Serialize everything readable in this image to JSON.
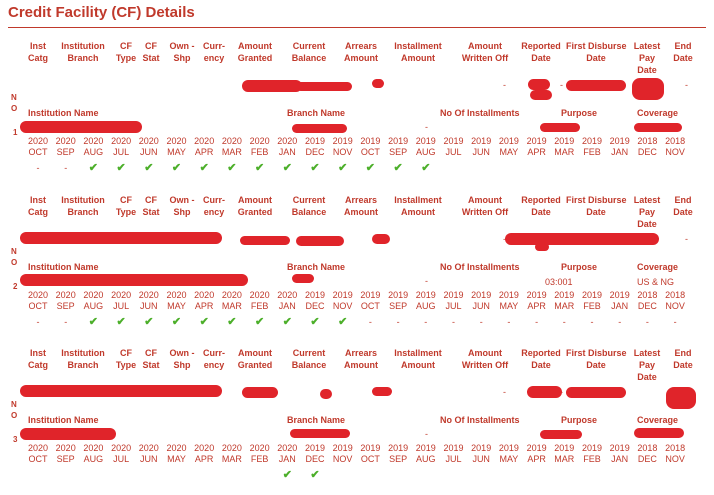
{
  "title": "Credit Facility (CF) Details",
  "columns": [
    {
      "l1": "Inst",
      "l2": "Catg",
      "l3": ""
    },
    {
      "l1": "Institution",
      "l2": "Branch",
      "l3": ""
    },
    {
      "l1": "CF",
      "l2": "Type",
      "l3": ""
    },
    {
      "l1": "CF",
      "l2": "Stat",
      "l3": ""
    },
    {
      "l1": "Own -",
      "l2": "Shp",
      "l3": ""
    },
    {
      "l1": "Curr-",
      "l2": "ency",
      "l3": ""
    },
    {
      "l1": "Amount",
      "l2": "Granted",
      "l3": ""
    },
    {
      "l1": "Current",
      "l2": "Balance",
      "l3": ""
    },
    {
      "l1": "Arrears",
      "l2": "Amount",
      "l3": ""
    },
    {
      "l1": "Installment",
      "l2": "Amount",
      "l3": ""
    },
    {
      "l1": "Amount",
      "l2": "Written Off",
      "l3": ""
    },
    {
      "l1": "Reported",
      "l2": "Date",
      "l3": ""
    },
    {
      "l1": "First Disburse",
      "l2": "Date",
      "l3": ""
    },
    {
      "l1": "Latest",
      "l2": "Pay",
      "l3": "Date"
    },
    {
      "l1": "End",
      "l2": "Date",
      "l3": ""
    }
  ],
  "row2_labels": {
    "institution_name": "Institution Name",
    "branch_name": "Branch Name",
    "no_installments": "No Of Installments",
    "purpose": "Purpose",
    "coverage": "Coverage"
  },
  "no_label": [
    "N",
    "O"
  ],
  "dash": "-",
  "months": [
    {
      "y": "2020",
      "m": "OCT"
    },
    {
      "y": "2020",
      "m": "SEP"
    },
    {
      "y": "2020",
      "m": "AUG"
    },
    {
      "y": "2020",
      "m": "JUL"
    },
    {
      "y": "2020",
      "m": "JUN"
    },
    {
      "y": "2020",
      "m": "MAY"
    },
    {
      "y": "2020",
      "m": "APR"
    },
    {
      "y": "2020",
      "m": "MAR"
    },
    {
      "y": "2020",
      "m": "FEB"
    },
    {
      "y": "2020",
      "m": "JAN"
    },
    {
      "y": "2019",
      "m": "DEC"
    },
    {
      "y": "2019",
      "m": "NOV"
    },
    {
      "y": "2019",
      "m": "OCT"
    },
    {
      "y": "2019",
      "m": "SEP"
    },
    {
      "y": "2019",
      "m": "AUG"
    },
    {
      "y": "2019",
      "m": "JUL"
    },
    {
      "y": "2019",
      "m": "JUN"
    },
    {
      "y": "2019",
      "m": "MAY"
    },
    {
      "y": "2019",
      "m": "APR"
    },
    {
      "y": "2019",
      "m": "MAR"
    },
    {
      "y": "2019",
      "m": "FEB"
    },
    {
      "y": "2019",
      "m": "JAN"
    },
    {
      "y": "2018",
      "m": "DEC"
    },
    {
      "y": "2018",
      "m": "NOV"
    }
  ],
  "facilities": [
    {
      "no": "1",
      "purpose": "",
      "coverage": "",
      "status": [
        "-",
        "-",
        "ok",
        "ok",
        "ok",
        "ok",
        "ok",
        "ok",
        "ok",
        "ok",
        "ok",
        "ok",
        "ok",
        "ok",
        "ok",
        "",
        "",
        "",
        "",
        "",
        "",
        "",
        "",
        ""
      ]
    },
    {
      "no": "2",
      "purpose": "03:001",
      "coverage": "US & NG",
      "status": [
        "-",
        "-",
        "ok",
        "ok",
        "ok",
        "ok",
        "ok",
        "ok",
        "ok",
        "ok",
        "ok",
        "ok",
        "-",
        "-",
        "-",
        "-",
        "-",
        "-",
        "-",
        "-",
        "-",
        "-",
        "-",
        "-"
      ]
    },
    {
      "no": "3",
      "purpose": "",
      "coverage": "",
      "status": [
        "",
        "",
        "",
        "",
        "",
        "",
        "",
        "",
        "",
        "ok",
        "ok",
        "",
        "",
        "",
        "",
        "",
        "",
        "",
        "",
        "",
        "",
        "",
        "",
        ""
      ]
    }
  ]
}
